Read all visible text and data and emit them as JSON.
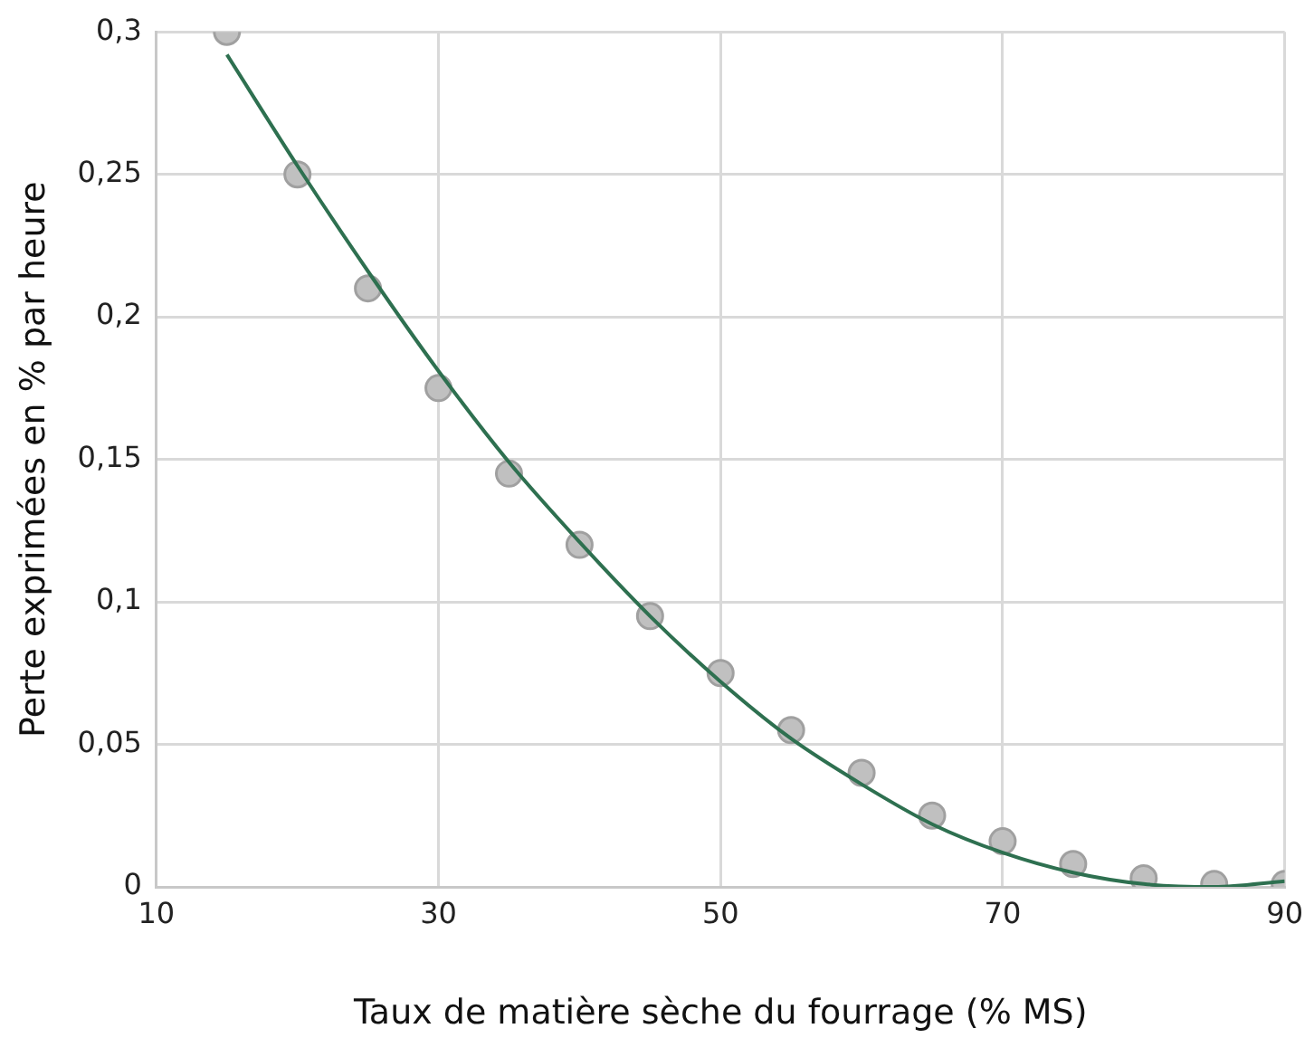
{
  "chart_data": {
    "type": "scatter",
    "xlabel": "Taux de matière sèche du fourrage (% MS)",
    "ylabel": "Perte exprimées en % par heure",
    "x": [
      15,
      20,
      25,
      30,
      35,
      40,
      45,
      50,
      55,
      60,
      65,
      70,
      75,
      80,
      85,
      90
    ],
    "series": [
      {
        "marker": "circle",
        "color": "#c0c0c0",
        "values": [
          0.3,
          0.25,
          0.21,
          0.175,
          0.145,
          0.12,
          0.095,
          0.075,
          0.055,
          0.04,
          0.025,
          0.016,
          0.008,
          0.003,
          0.001,
          0.001
        ]
      },
      {
        "type": "line",
        "marker": "none",
        "color": "#2e7050",
        "x": [
          15,
          20,
          25,
          30,
          35,
          40,
          45,
          50,
          55,
          60,
          65,
          70,
          75,
          80,
          85,
          90
        ],
        "values": [
          0.292,
          0.253,
          0.216,
          0.181,
          0.149,
          0.121,
          0.095,
          0.072,
          0.052,
          0.036,
          0.022,
          0.012,
          0.005,
          0.001,
          0.0,
          0.002
        ]
      }
    ],
    "xlim": [
      10,
      90
    ],
    "xticks": [
      10,
      30,
      50,
      70,
      90
    ],
    "ylim": [
      0,
      0.3
    ],
    "yticks": [
      0,
      {
        "value": 0.05,
        "label": "0,05"
      },
      {
        "value": 0.1,
        "label": "0,1"
      },
      {
        "value": 0.15,
        "label": "0,15"
      },
      {
        "value": 0.2,
        "label": "0,2"
      },
      {
        "value": 0.25,
        "label": "0,25"
      },
      {
        "value": 0.3,
        "label": "0,3"
      }
    ],
    "grid": true,
    "legend": false,
    "line_style": "solid"
  }
}
